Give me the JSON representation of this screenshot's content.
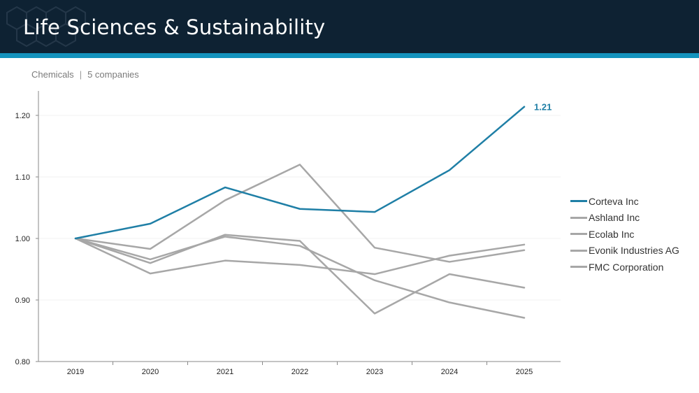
{
  "header": {
    "title": "Life Sciences & Sustainability"
  },
  "subtitle": {
    "sector": "Chemicals",
    "separator": "|",
    "count": "5 companies"
  },
  "colors": {
    "header_bg": "#0e2233",
    "accent": "#1493bd",
    "highlight_series": "#1f7fa6",
    "other_series": "#a7a7a7"
  },
  "chart_data": {
    "type": "line",
    "x": [
      "2019",
      "2020",
      "2021",
      "2022",
      "2023",
      "2024",
      "2025"
    ],
    "ylim": [
      0.8,
      1.25
    ],
    "yticks": [
      0.8,
      0.9,
      1.0,
      1.1,
      1.2
    ],
    "ytick_labels": [
      "0.80",
      "0.90",
      "1.00",
      "1.10",
      "1.20"
    ],
    "grid": true,
    "legend_position": "right",
    "end_label": "1.21",
    "series": [
      {
        "name": "Corteva Inc",
        "values": [
          1.0,
          1.024,
          1.083,
          1.048,
          1.043,
          1.111,
          1.214
        ],
        "highlight": true
      },
      {
        "name": "Ashland Inc",
        "values": [
          1.0,
          0.983,
          1.062,
          1.12,
          0.985,
          0.962,
          0.981
        ],
        "highlight": false
      },
      {
        "name": "Ecolab Inc",
        "values": [
          1.0,
          0.96,
          1.006,
          0.996,
          0.878,
          0.942,
          0.92
        ],
        "highlight": false
      },
      {
        "name": "Evonik Industries AG",
        "values": [
          1.0,
          0.943,
          0.964,
          0.957,
          0.942,
          0.972,
          0.99
        ],
        "highlight": false
      },
      {
        "name": "FMC Corporation",
        "values": [
          1.0,
          0.966,
          1.003,
          0.988,
          0.932,
          0.896,
          0.871
        ],
        "highlight": false
      }
    ]
  }
}
